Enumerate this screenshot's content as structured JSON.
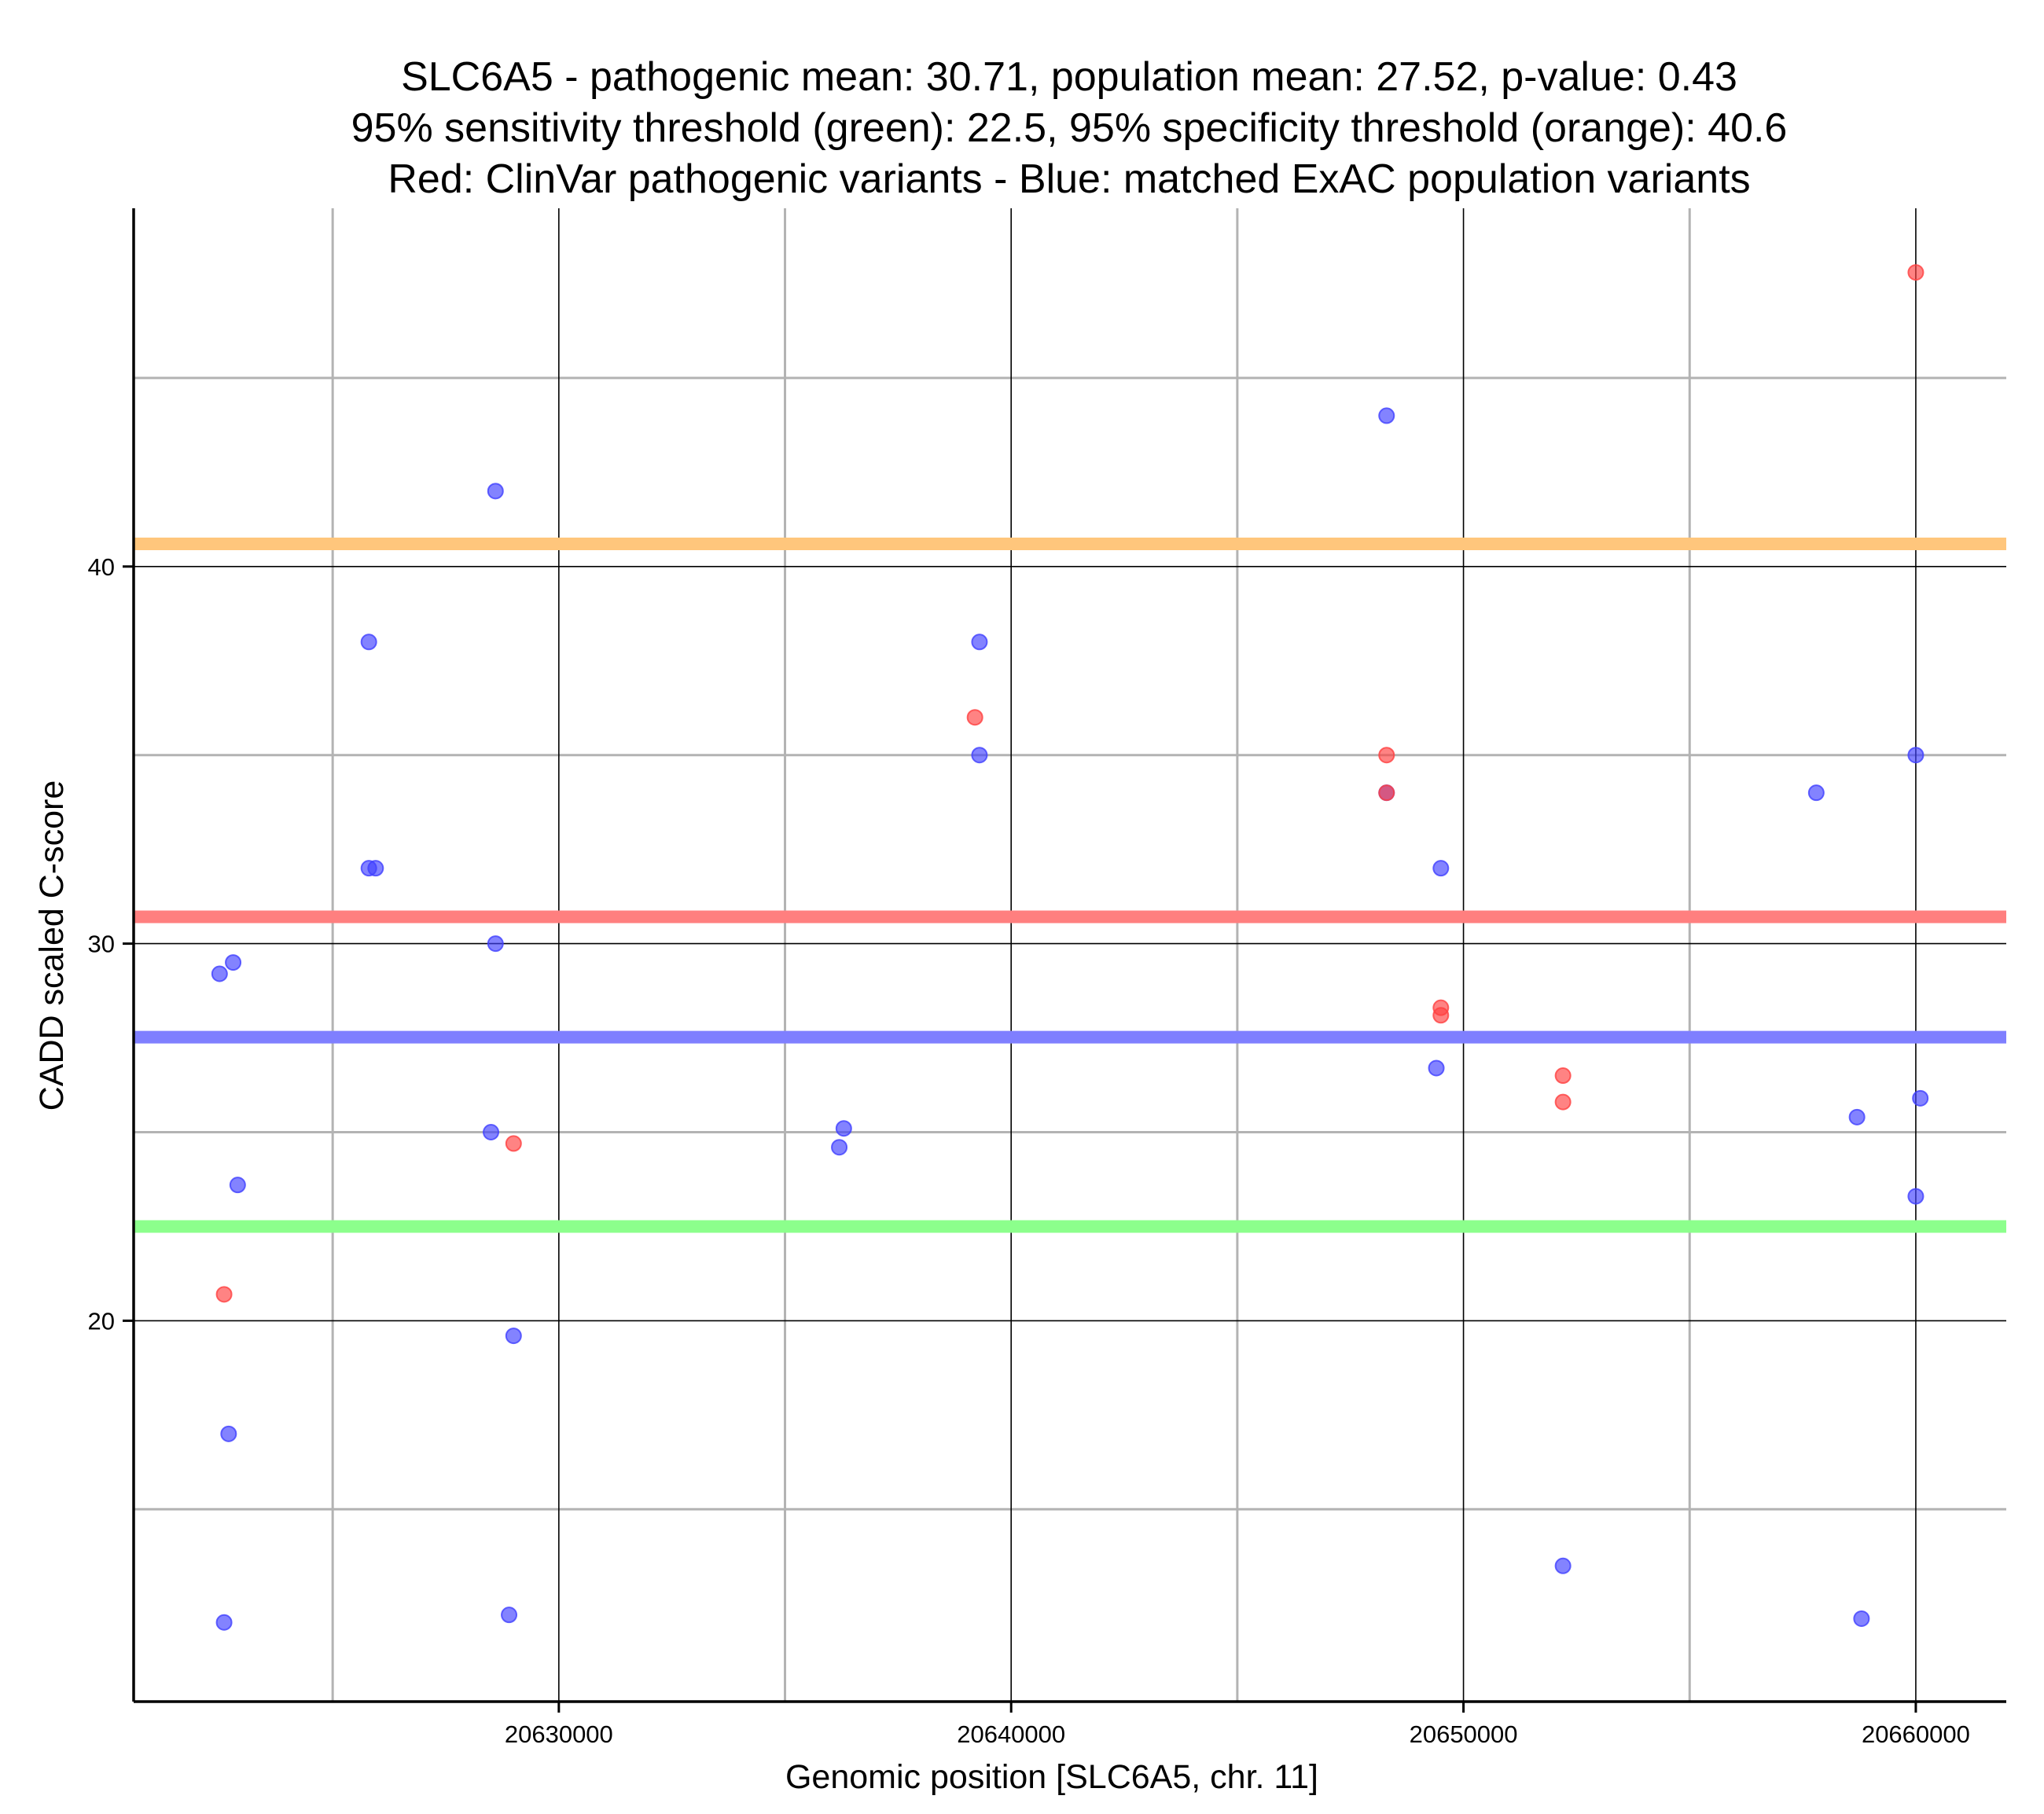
{
  "chart_data": {
    "type": "scatter",
    "title_lines": [
      "SLC6A5 - pathogenic mean: 30.71, population mean: 27.52, p-value: 0.43",
      "95% sensitivity threshold (green): 22.5, 95% specificity threshold (orange): 40.6",
      "Red: ClinVar pathogenic variants - Blue: matched ExAC population variants"
    ],
    "xlabel": "Genomic position [SLC6A5, chr. 11]",
    "ylabel": "CADD scaled C-score",
    "xlim": [
      20620600,
      20662000
    ],
    "ylim": [
      9.9,
      49.5
    ],
    "x_ticks": [
      20630000,
      20640000,
      20650000,
      20660000
    ],
    "x_tick_labels": [
      "20630000",
      "20640000",
      "20650000",
      "20660000"
    ],
    "x_minor_grid": [
      20625000,
      20635000,
      20645000,
      20655000
    ],
    "y_ticks": [
      20,
      30,
      40
    ],
    "y_tick_labels": [
      "20",
      "30",
      "40"
    ],
    "y_minor_grid": [
      15,
      25,
      35,
      45
    ],
    "reference_lines": [
      {
        "name": "specificity-threshold",
        "value": 40.6,
        "color": "#ffc67c"
      },
      {
        "name": "pathogenic-mean",
        "value": 30.71,
        "color": "#ff7f7f"
      },
      {
        "name": "population-mean",
        "value": 27.52,
        "color": "#7f7fff"
      },
      {
        "name": "sensitivity-threshold",
        "value": 22.5,
        "color": "#8cff8c"
      }
    ],
    "series": [
      {
        "name": "ExAC population variants",
        "color": "#4040ff",
        "points": [
          [
            20622500,
            29.2
          ],
          [
            20622800,
            29.5
          ],
          [
            20622900,
            23.6
          ],
          [
            20622700,
            17.0
          ],
          [
            20622600,
            12.0
          ],
          [
            20625800,
            38.0
          ],
          [
            20625800,
            32.0
          ],
          [
            20625950,
            32.0
          ],
          [
            20628600,
            42.0
          ],
          [
            20628600,
            30.0
          ],
          [
            20628500,
            25.0
          ],
          [
            20629000,
            19.6
          ],
          [
            20628900,
            12.2
          ],
          [
            20636300,
            25.1
          ],
          [
            20636200,
            24.6
          ],
          [
            20639300,
            38.0
          ],
          [
            20639300,
            35.0
          ],
          [
            20648300,
            44.0
          ],
          [
            20648300,
            34.0
          ],
          [
            20649500,
            32.0
          ],
          [
            20649400,
            26.7
          ],
          [
            20652200,
            13.5
          ],
          [
            20657800,
            34.0
          ],
          [
            20658700,
            25.4
          ],
          [
            20658800,
            12.1
          ],
          [
            20660000,
            35.0
          ],
          [
            20660100,
            25.9
          ],
          [
            20660000,
            23.3
          ]
        ]
      },
      {
        "name": "ClinVar pathogenic variants",
        "color": "#ff4040",
        "points": [
          [
            20622600,
            20.7
          ],
          [
            20629000,
            24.7
          ],
          [
            20639200,
            36.0
          ],
          [
            20648300,
            35.0
          ],
          [
            20648300,
            34.0
          ],
          [
            20649500,
            28.3
          ],
          [
            20649500,
            28.1
          ],
          [
            20652200,
            26.5
          ],
          [
            20652200,
            25.8
          ],
          [
            20660000,
            47.8
          ]
        ]
      }
    ]
  }
}
